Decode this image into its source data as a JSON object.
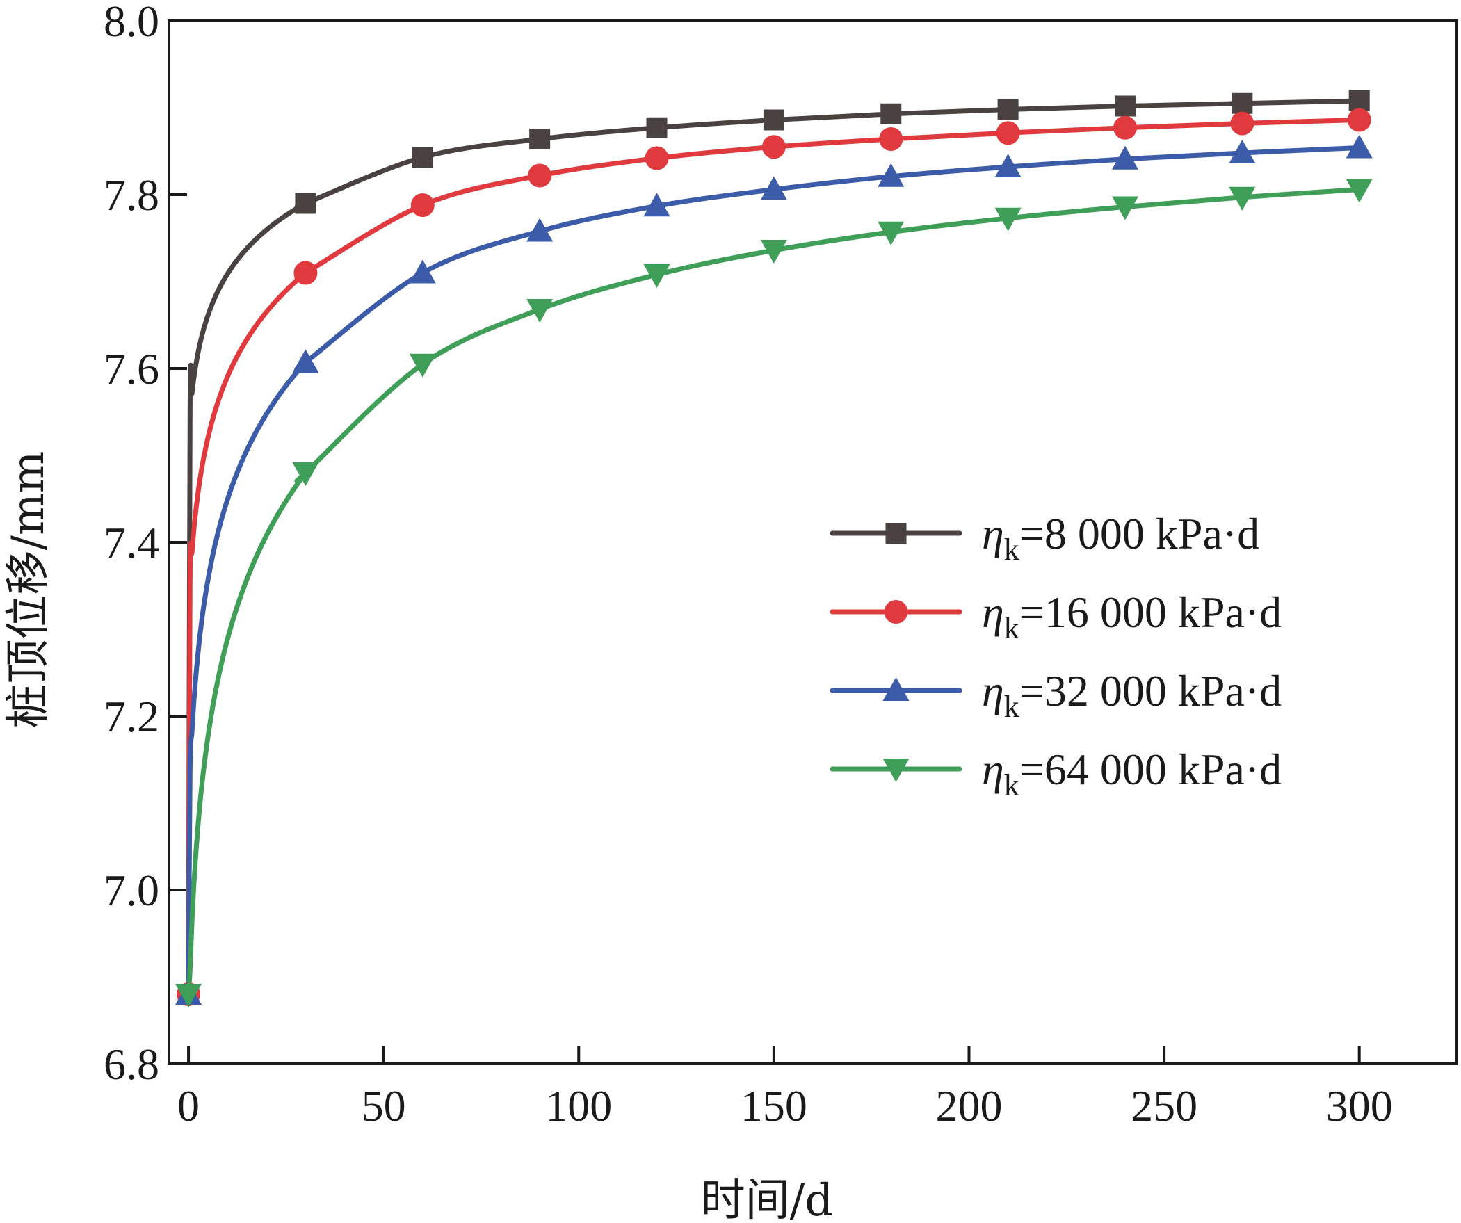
{
  "chart_data": {
    "type": "line",
    "xlabel": "时间/d",
    "ylabel": "桩顶位移/mm",
    "xlim": [
      -5,
      325
    ],
    "ylim": [
      6.8,
      8.0
    ],
    "xticks": [
      0,
      50,
      100,
      150,
      200,
      250,
      300
    ],
    "yticks": [
      6.8,
      7.0,
      7.2,
      7.4,
      7.6,
      7.8,
      8.0
    ],
    "xtick_labels": [
      "0",
      "50",
      "100",
      "150",
      "200",
      "250",
      "300"
    ],
    "ytick_labels": [
      "6.8",
      "7.0",
      "7.2",
      "7.4",
      "7.6",
      "7.8",
      "8.0"
    ],
    "grid": false,
    "legend_position": "center-right",
    "x": [
      0,
      30,
      60,
      90,
      120,
      150,
      180,
      210,
      240,
      270,
      300
    ],
    "series": [
      {
        "name": "=8 000 kPa·d",
        "symbol": "η",
        "subscript": "k",
        "color": "#4a4240",
        "marker": "square",
        "values": [
          6.88,
          7.79,
          7.843,
          7.864,
          7.877,
          7.886,
          7.893,
          7.898,
          7.902,
          7.905,
          7.908
        ]
      },
      {
        "name": "=16 000 kPa·d",
        "symbol": "η",
        "subscript": "k",
        "color": "#e0393e",
        "marker": "circle",
        "values": [
          6.88,
          7.71,
          7.788,
          7.822,
          7.842,
          7.855,
          7.864,
          7.871,
          7.877,
          7.882,
          7.886
        ]
      },
      {
        "name": "=32 000 kPa·d",
        "symbol": "η",
        "subscript": "k",
        "color": "#3c5ba8",
        "marker": "triangle-up",
        "values": [
          6.88,
          7.607,
          7.71,
          7.758,
          7.787,
          7.806,
          7.821,
          7.832,
          7.841,
          7.848,
          7.854
        ]
      },
      {
        "name": "=64 000 kPa·d",
        "symbol": "η",
        "subscript": "k",
        "color": "#3f9e57",
        "marker": "triangle-down",
        "values": [
          6.88,
          7.48,
          7.605,
          7.668,
          7.708,
          7.736,
          7.757,
          7.773,
          7.786,
          7.797,
          7.806
        ]
      }
    ]
  }
}
